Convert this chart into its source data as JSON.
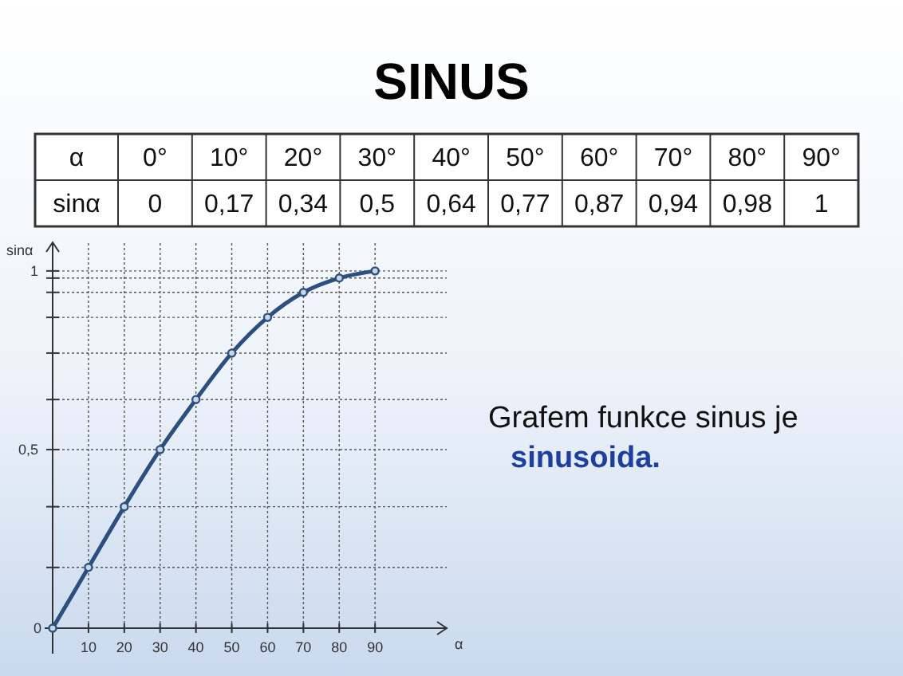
{
  "chart_data": {
    "type": "line",
    "title": "SINUS",
    "xlabel": "α",
    "ylabel": "sinα",
    "x": [
      0,
      10,
      20,
      30,
      40,
      50,
      60,
      70,
      80,
      90
    ],
    "series": [
      {
        "color": "#2b4f7e",
        "values": [
          0,
          0.17,
          0.34,
          0.5,
          0.64,
          0.77,
          0.87,
          0.94,
          0.98,
          1
        ]
      }
    ],
    "xlim": [
      0,
      110
    ],
    "ylim": [
      0,
      1.08
    ],
    "xticks": [
      10,
      20,
      30,
      40,
      50,
      60,
      70,
      80,
      90
    ],
    "yticks": [
      0,
      {
        "value": 0.17,
        "label": null
      },
      {
        "value": 0.34,
        "label": null
      },
      {
        "value": 0.5,
        "label": "0,5"
      },
      {
        "value": 0.64,
        "label": null
      },
      {
        "value": 0.77,
        "label": null
      },
      {
        "value": 0.87,
        "label": null
      },
      {
        "value": 0.94,
        "label": null
      },
      {
        "value": 0.98,
        "label": null
      },
      1
    ],
    "marker": "circle",
    "line_style": "solid",
    "grid": true,
    "annotations": [
      "0°",
      "10°",
      "20°",
      "30°",
      "40°",
      "50°",
      "60°",
      "70°",
      "80°",
      "90°",
      "0",
      "0,17",
      "0,34",
      "0,5",
      "0,64",
      "0,77",
      "0,87",
      "0,94",
      "0,98",
      "1",
      "Grafem funkce sinus je",
      "sinusoida."
    ]
  }
}
